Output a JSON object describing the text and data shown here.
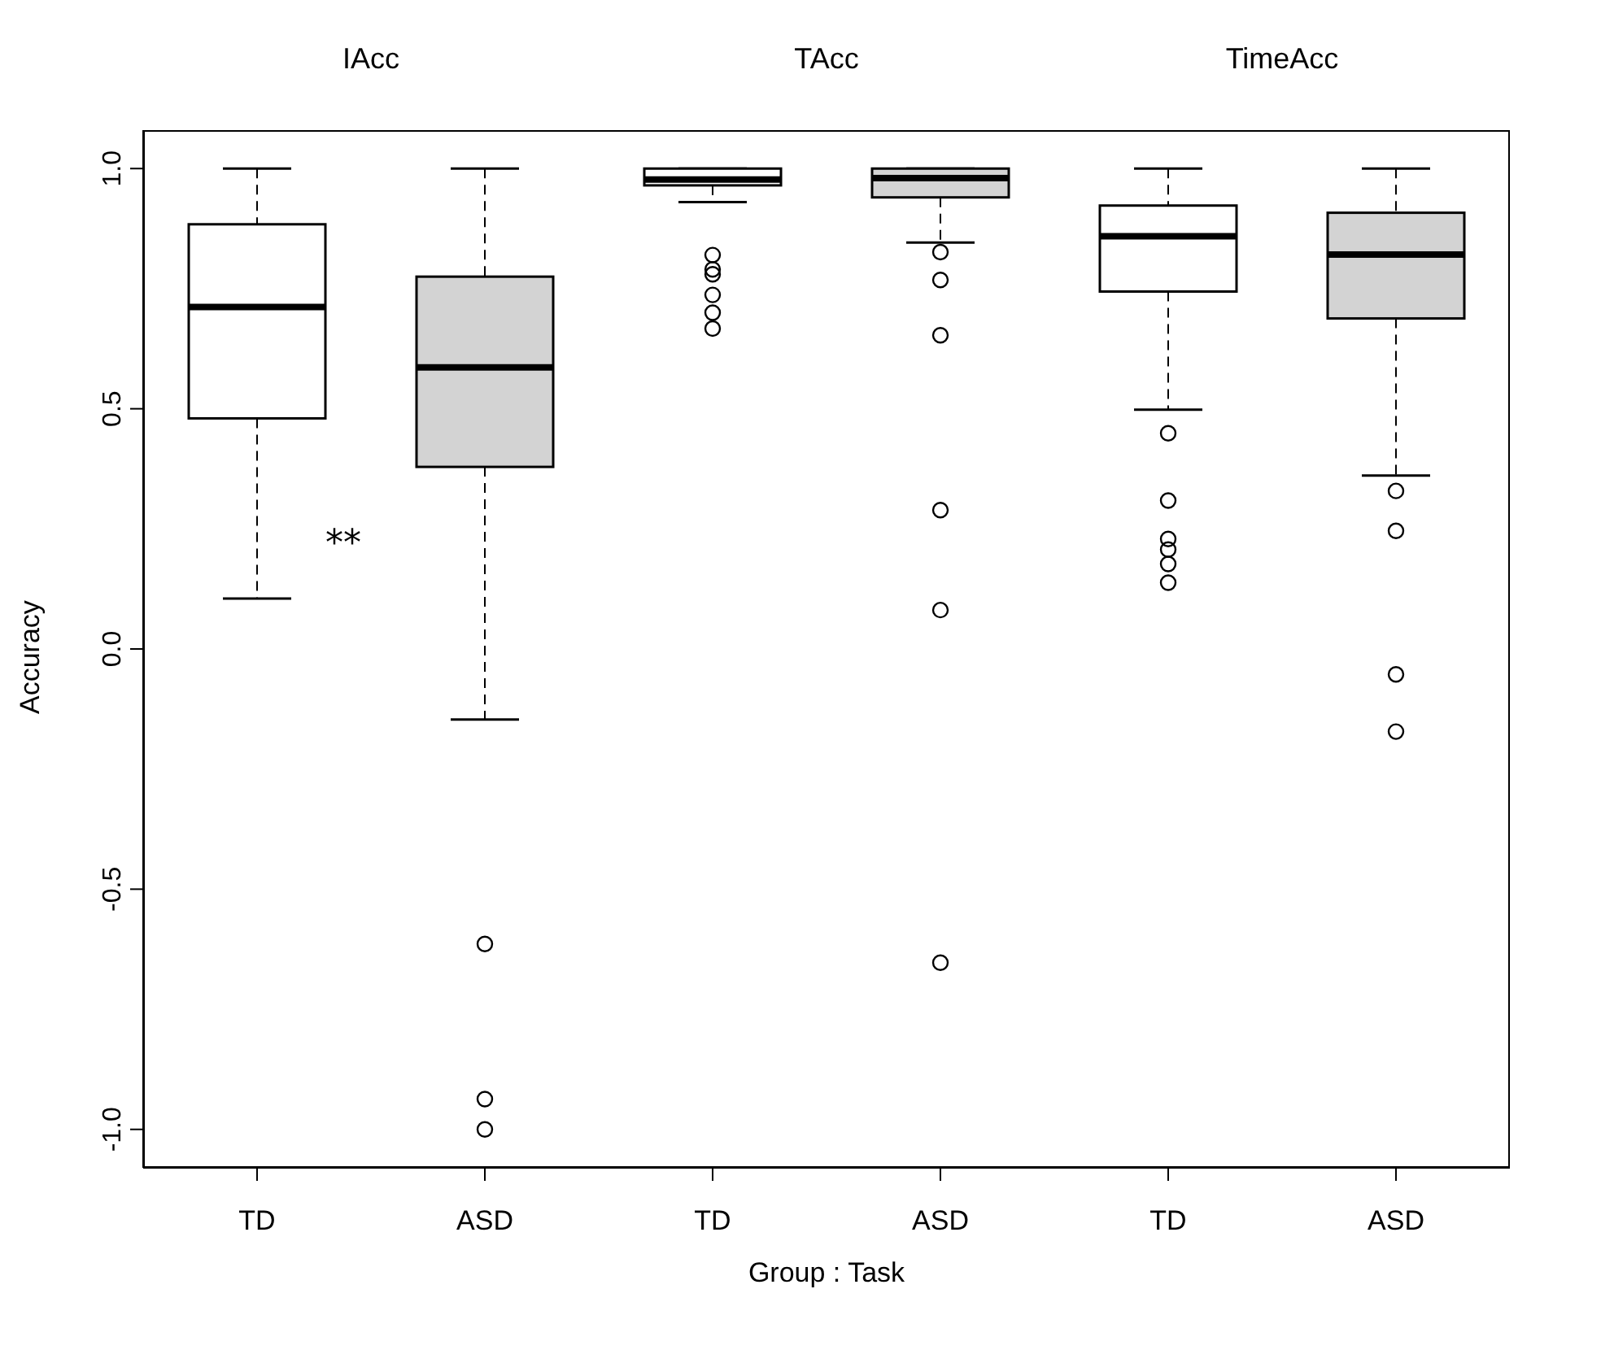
{
  "chart_data": {
    "type": "box",
    "xlabel": "Group : Task",
    "ylabel": "Accuracy",
    "categories": [
      "TD",
      "ASD",
      "TD",
      "ASD",
      "TD",
      "ASD"
    ],
    "colors": [
      "#ffffff",
      "#d3d3d3",
      "#ffffff",
      "#d3d3d3",
      "#ffffff",
      "#d3d3d3"
    ],
    "boxes": [
      {
        "low": 0.105,
        "q1": 0.48,
        "median": 0.712,
        "q3": 0.884,
        "high": 1.0
      },
      {
        "low": -0.147,
        "q1": 0.379,
        "median": 0.586,
        "q3": 0.775,
        "high": 1.0,
        "outliers": [
          -0.614,
          -0.937,
          -1.0
        ]
      },
      {
        "low": 0.93,
        "q1": 0.965,
        "median": 0.977,
        "q3": 1.0,
        "high": 1.0,
        "outliers": [
          0.82,
          0.79,
          0.78,
          0.737,
          0.7,
          0.667
        ]
      },
      {
        "low": 0.846,
        "q1": 0.94,
        "median": 0.98,
        "q3": 1.0,
        "high": 1.0,
        "outliers": [
          0.826,
          0.768,
          0.653,
          0.289,
          0.081,
          -0.653
        ]
      },
      {
        "low": 0.498,
        "q1": 0.744,
        "median": 0.859,
        "q3": 0.923,
        "high": 1.0,
        "outliers": [
          0.449,
          0.309,
          0.229,
          0.207,
          0.177,
          0.138
        ]
      },
      {
        "low": 0.361,
        "q1": 0.688,
        "median": 0.821,
        "q3": 0.908,
        "high": 1.0,
        "outliers": [
          0.329,
          0.246,
          -0.053,
          -0.172
        ]
      }
    ],
    "ylim": [
      -1.08,
      1.08
    ],
    "yticks": [
      {
        "value": -1,
        "label": "-1.0"
      },
      -0.5,
      {
        "value": 0,
        "label": "0.0"
      },
      0.5,
      {
        "value": 1,
        "label": "1.0"
      }
    ],
    "annotations": [
      "IAcc",
      "TAcc",
      "TimeAcc",
      "**"
    ]
  }
}
